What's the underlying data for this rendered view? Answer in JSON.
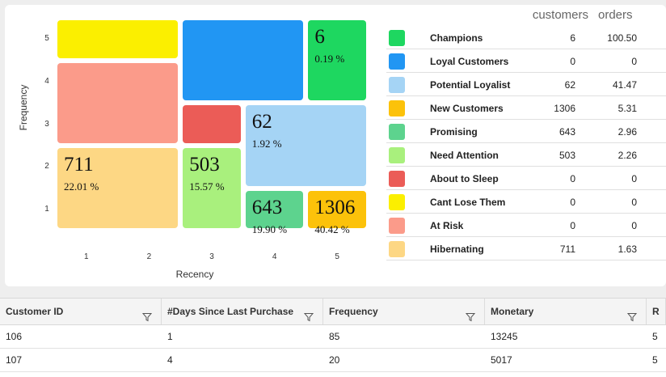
{
  "chart_data": {
    "type": "heatmap",
    "xlabel": "Recency",
    "ylabel": "Frequency",
    "x_ticks": [
      "1",
      "2",
      "3",
      "4",
      "5"
    ],
    "y_ticks": [
      "5",
      "4",
      "3",
      "2",
      "1"
    ],
    "segments": [
      {
        "name": "Cant Lose Them",
        "recency": [
          1,
          2
        ],
        "frequency": [
          5,
          5
        ],
        "color": "#fbef00",
        "count": "",
        "pct": ""
      },
      {
        "name": "Loyal Customers",
        "recency": [
          3,
          4
        ],
        "frequency": [
          4,
          5
        ],
        "color": "#2196f3",
        "count": "",
        "pct": ""
      },
      {
        "name": "Champions",
        "recency": [
          5,
          5
        ],
        "frequency": [
          4,
          5
        ],
        "color": "#1ed760",
        "count": "6",
        "pct": "0.19 %"
      },
      {
        "name": "At Risk",
        "recency": [
          1,
          2
        ],
        "frequency": [
          3,
          4
        ],
        "color": "#fb9b8a",
        "count": "",
        "pct": ""
      },
      {
        "name": "About to Sleep",
        "recency": [
          3,
          3
        ],
        "frequency": [
          3,
          3
        ],
        "color": "#eb5c57",
        "count": "",
        "pct": ""
      },
      {
        "name": "Potential Loyalist",
        "recency": [
          4,
          5
        ],
        "frequency": [
          2,
          3
        ],
        "color": "#a5d4f5",
        "count": "62",
        "pct": "1.92 %"
      },
      {
        "name": "Hibernating",
        "recency": [
          1,
          2
        ],
        "frequency": [
          1,
          2
        ],
        "color": "#fdd784",
        "count": "711",
        "pct": "22.01 %"
      },
      {
        "name": "Need Attention",
        "recency": [
          3,
          3
        ],
        "frequency": [
          1,
          2
        ],
        "color": "#a9f07d",
        "count": "503",
        "pct": "15.57 %"
      },
      {
        "name": "Promising",
        "recency": [
          4,
          4
        ],
        "frequency": [
          1,
          1
        ],
        "color": "#5dd38e",
        "count": "643",
        "pct": "19.90 %"
      },
      {
        "name": "New Customers",
        "recency": [
          5,
          5
        ],
        "frequency": [
          1,
          1
        ],
        "color": "#fcc20a",
        "count": "1306",
        "pct": "40.42 %"
      }
    ]
  },
  "legend": {
    "col_customers": "customers",
    "col_orders": "orders",
    "rows": [
      {
        "name": "Champions",
        "color": "#1ed760",
        "customers": "6",
        "orders": "100.50"
      },
      {
        "name": "Loyal Customers",
        "color": "#2196f3",
        "customers": "0",
        "orders": "0"
      },
      {
        "name": "Potential Loyalist",
        "color": "#a5d4f5",
        "customers": "62",
        "orders": "41.47"
      },
      {
        "name": "New Customers",
        "color": "#fcc20a",
        "customers": "1306",
        "orders": "5.31"
      },
      {
        "name": "Promising",
        "color": "#5dd38e",
        "customers": "643",
        "orders": "2.96"
      },
      {
        "name": "Need Attention",
        "color": "#a9f07d",
        "customers": "503",
        "orders": "2.26"
      },
      {
        "name": "About to Sleep",
        "color": "#eb5c57",
        "customers": "0",
        "orders": "0"
      },
      {
        "name": "Cant Lose Them",
        "color": "#fbef00",
        "customers": "0",
        "orders": "0"
      },
      {
        "name": "At Risk",
        "color": "#fb9b8a",
        "customers": "0",
        "orders": "0"
      },
      {
        "name": "Hibernating",
        "color": "#fdd784",
        "customers": "711",
        "orders": "1.63"
      }
    ]
  },
  "table": {
    "columns": [
      {
        "label": "Customer ID",
        "filter_icon": "filter-icon"
      },
      {
        "label": "#Days Since Last Purchase",
        "filter_icon": "filter-icon"
      },
      {
        "label": "Frequency",
        "filter_icon": "filter-icon"
      },
      {
        "label": "Monetary",
        "filter_icon": "filter-icon"
      },
      {
        "label": "R",
        "filter_icon": ""
      }
    ],
    "rows": [
      [
        "106",
        "1",
        "85",
        "13245",
        "5"
      ],
      [
        "107",
        "4",
        "20",
        "5017",
        "5"
      ]
    ]
  }
}
